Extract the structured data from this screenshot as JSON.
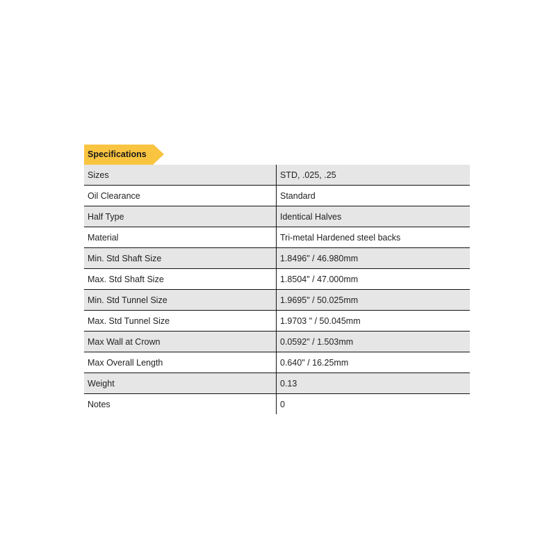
{
  "title": "Specifications",
  "accent_color": "#f9c440",
  "rows": [
    {
      "label": "Sizes",
      "value": "STD, .025, .25"
    },
    {
      "label": "Oil Clearance",
      "value": "Standard"
    },
    {
      "label": "Half Type",
      "value": "Identical Halves"
    },
    {
      "label": "Material",
      "value": "Tri-metal Hardened steel backs"
    },
    {
      "label": "Min. Std Shaft Size",
      "value": "1.8496\" / 46.980mm"
    },
    {
      "label": "Max. Std Shaft Size",
      "value": "1.8504\" / 47.000mm"
    },
    {
      "label": "Min. Std Tunnel Size",
      "value": "1.9695\" / 50.025mm"
    },
    {
      "label": "Max. Std Tunnel Size",
      "value": "1.9703 \" / 50.045mm"
    },
    {
      "label": "Max Wall at Crown",
      "value": "0.0592\" / 1.503mm"
    },
    {
      "label": "Max Overall Length",
      "value": "0.640\" / 16.25mm"
    },
    {
      "label": "Weight",
      "value": "0.13"
    },
    {
      "label": "Notes",
      "value": "0"
    }
  ]
}
